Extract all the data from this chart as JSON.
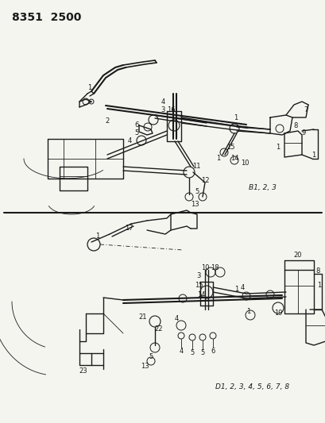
{
  "title": "8351  2500",
  "bg_color": "#f5f5f0",
  "line_color": "#1a1a1a",
  "fig_width": 4.1,
  "fig_height": 5.33,
  "dpi": 100,
  "upper_ann": "B1, 2, 3",
  "lower_ann": "D1, 2, 3, 4, 5, 6, 7, 8",
  "lw_main": 1.0,
  "lw_thin": 0.6,
  "lw_thick": 1.5,
  "label_fs": 6.0,
  "title_fs": 10,
  "ann_fs": 6.5
}
